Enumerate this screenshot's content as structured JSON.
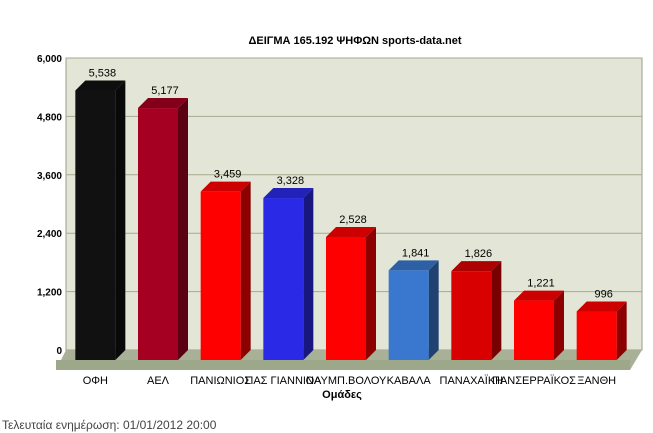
{
  "chart_data": {
    "type": "bar",
    "title": "ΔΕΙΓΜΑ 165.192 ΨΗΦΩΝ  sports-data.net",
    "xlabel": "Ομάδες",
    "ylabel": "",
    "ylim": [
      0,
      6000
    ],
    "yticks": [
      "0",
      "1,200",
      "2,400",
      "3,600",
      "4,800",
      "6,000"
    ],
    "ytick_values": [
      0,
      1200,
      2400,
      3600,
      4800,
      6000
    ],
    "grid": true,
    "categories": [
      "ΟΦΗ",
      "ΑΕΛ",
      "ΠΑΝΙΩΝΙΟΣ",
      "ΠΑΣ ΓΙΑΝΝΙΝΑ",
      "ΟΛΥΜΠ.ΒΟΛΟΥ",
      "ΚΑΒΑΛΑ",
      "ΠΑΝΑΧΑΪΚΗ",
      "ΠΑΝΣΕΡΡΑΪΚΟΣ",
      "ΞΑΝΘΗ"
    ],
    "values": [
      5538,
      5177,
      3459,
      3328,
      2528,
      1841,
      1826,
      1221,
      996
    ],
    "value_labels": [
      "5,538",
      "5,177",
      "3,459",
      "3,328",
      "2,528",
      "1,841",
      "1,826",
      "1,221",
      "996"
    ],
    "colors": [
      "#111111",
      "#a50021",
      "#ff0000",
      "#2a2ae6",
      "#ff0000",
      "#3a78d0",
      "#d80000",
      "#ff0000",
      "#ff0000"
    ]
  },
  "footer": "Τελευταία ενημέρωση: 01/01/2012 20:00"
}
